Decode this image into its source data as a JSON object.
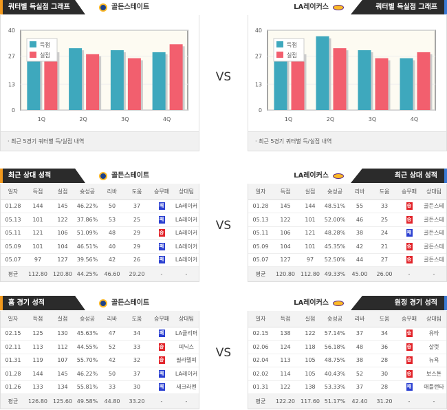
{
  "vs_label": "VS",
  "charts": {
    "left": {
      "title": "쿼터별 득실점 그래프",
      "team": "골든스테이트",
      "footer": "·  최근 5경기 쿼터별 득/실점 내역"
    },
    "right": {
      "title": "쿼터별 득실점 그래프",
      "team": "LA레이커스",
      "footer": "·  최근 5경기 쿼터별 득/실점 내역"
    }
  },
  "chart_data": [
    {
      "type": "bar",
      "team": "골든스테이트",
      "categories": [
        "1Q",
        "2Q",
        "3Q",
        "4Q"
      ],
      "ylim": [
        0,
        40
      ],
      "yticks": [
        "0",
        "13",
        "27",
        "40"
      ],
      "legend": "top-left",
      "series": [
        {
          "name": "득점",
          "color": "#3ea8bd",
          "values": [
            35,
            31,
            30,
            29
          ]
        },
        {
          "name": "실점",
          "color": "#f25f6e",
          "values": [
            30,
            28,
            26,
            33
          ]
        }
      ]
    },
    {
      "type": "bar",
      "team": "LA레이커스",
      "categories": [
        "1Q",
        "2Q",
        "3Q",
        "4Q"
      ],
      "ylim": [
        0,
        40
      ],
      "yticks": [
        "0",
        "13",
        "27",
        "40"
      ],
      "legend": "top-left",
      "series": [
        {
          "name": "득점",
          "color": "#3ea8bd",
          "values": [
            32,
            37,
            30,
            26
          ]
        },
        {
          "name": "실점",
          "color": "#f25f6e",
          "values": [
            29,
            31,
            26,
            29
          ]
        }
      ]
    }
  ],
  "columns": [
    "일자",
    "득점",
    "실점",
    "슛성공",
    "리바",
    "도움",
    "승무패",
    "상대팀"
  ],
  "tables": [
    {
      "title": "최근 상대 성적",
      "team": "골든스테이트",
      "side": "L",
      "rows": [
        [
          "01.28",
          "144",
          "145",
          "46.22%",
          "50",
          "37",
          "패",
          "LA레이커"
        ],
        [
          "05.13",
          "101",
          "122",
          "37.86%",
          "53",
          "25",
          "패",
          "LA레이커"
        ],
        [
          "05.11",
          "121",
          "106",
          "51.09%",
          "48",
          "29",
          "승",
          "LA레이커"
        ],
        [
          "05.09",
          "101",
          "104",
          "46.51%",
          "40",
          "29",
          "패",
          "LA레이커"
        ],
        [
          "05.07",
          "97",
          "127",
          "39.56%",
          "42",
          "26",
          "패",
          "LA레이커"
        ]
      ],
      "avg": [
        "평균",
        "112.80",
        "120.80",
        "44.25%",
        "46.60",
        "29.20",
        "-",
        "-"
      ]
    },
    {
      "title": "최근 상대 성적",
      "team": "LA레이커스",
      "side": "R",
      "rows": [
        [
          "01.28",
          "145",
          "144",
          "48.51%",
          "55",
          "33",
          "승",
          "골든스테"
        ],
        [
          "05.13",
          "122",
          "101",
          "52.00%",
          "46",
          "25",
          "승",
          "골든스테"
        ],
        [
          "05.11",
          "106",
          "121",
          "48.28%",
          "38",
          "24",
          "패",
          "골든스테"
        ],
        [
          "05.09",
          "104",
          "101",
          "45.35%",
          "42",
          "21",
          "승",
          "골든스테"
        ],
        [
          "05.07",
          "127",
          "97",
          "52.50%",
          "44",
          "27",
          "승",
          "골든스테"
        ]
      ],
      "avg": [
        "평균",
        "120.80",
        "112.80",
        "49.33%",
        "45.00",
        "26.00",
        "-",
        "-"
      ]
    },
    {
      "title": "홈 경기 성적",
      "team": "골든스테이트",
      "side": "L",
      "rows": [
        [
          "02.15",
          "125",
          "130",
          "45.63%",
          "47",
          "34",
          "패",
          "LA클리퍼"
        ],
        [
          "02.11",
          "113",
          "112",
          "44.55%",
          "52",
          "33",
          "승",
          "피닉스"
        ],
        [
          "01.31",
          "119",
          "107",
          "55.70%",
          "42",
          "32",
          "승",
          "필라델피"
        ],
        [
          "01.28",
          "144",
          "145",
          "46.22%",
          "50",
          "37",
          "패",
          "LA레이커"
        ],
        [
          "01.26",
          "133",
          "134",
          "55.81%",
          "33",
          "30",
          "패",
          "새크라멘"
        ]
      ],
      "avg": [
        "평균",
        "126.80",
        "125.60",
        "49.58%",
        "44.80",
        "33.20",
        "-",
        "-"
      ]
    },
    {
      "title": "원정 경기 성적",
      "team": "LA레이커스",
      "side": "R",
      "rows": [
        [
          "02.15",
          "138",
          "122",
          "57.14%",
          "37",
          "34",
          "승",
          "유타"
        ],
        [
          "02.06",
          "124",
          "118",
          "56.18%",
          "48",
          "36",
          "승",
          "샬럿"
        ],
        [
          "02.04",
          "113",
          "105",
          "48.75%",
          "38",
          "28",
          "승",
          "뉴욕"
        ],
        [
          "02.02",
          "114",
          "105",
          "40.43%",
          "52",
          "30",
          "승",
          "보스톤"
        ],
        [
          "01.31",
          "122",
          "138",
          "53.33%",
          "37",
          "28",
          "패",
          "애틀랜타"
        ]
      ],
      "avg": [
        "평균",
        "122.20",
        "117.60",
        "51.17%",
        "42.40",
        "31.20",
        "-",
        "-"
      ]
    }
  ]
}
